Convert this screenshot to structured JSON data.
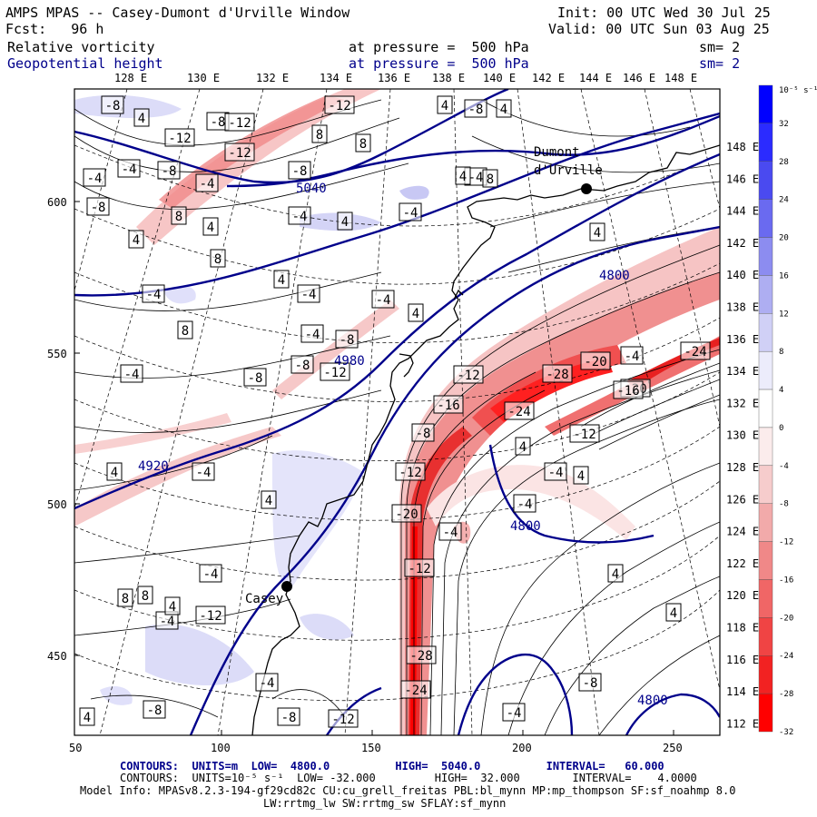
{
  "header": {
    "title": "AMPS MPAS -- Casey-Dumont d'Urville Window",
    "init": "Init: 00 UTC Wed 30 Jul 25",
    "fcst": "Fcst:   96 h",
    "valid": "Valid: 00 UTC Sun 03 Aug 25",
    "field1": "Relative vorticity",
    "field1_pressure": "at pressure =  500 hPa",
    "field1_sm": "sm= 2",
    "field2": "Geopotential height",
    "field2_pressure": "at pressure =  500 hPa",
    "field2_sm": "sm= 2"
  },
  "map": {
    "top_lon_labels": [
      "128 E",
      "130 E",
      "132 E",
      "134 E",
      "136 E",
      "138 E",
      "140 E",
      "142 E",
      "144 E",
      "146 E",
      "148 E"
    ],
    "right_lat_labels": [
      "148 E",
      "146 E",
      "144 E",
      "142 E",
      "140 E",
      "138 E",
      "136 E",
      "134 E",
      "132 E",
      "130 E",
      "128 E",
      "126 E",
      "124 E",
      "122 E",
      "120 E",
      "118 E",
      "116 E",
      "114 E",
      "112 E"
    ],
    "left_y_labels": [
      "600",
      "550",
      "500",
      "450"
    ],
    "bottom_x_labels": [
      "50",
      "100",
      "150",
      "200",
      "250"
    ],
    "stations": [
      {
        "name": "Dumont d'Urville"
      },
      {
        "name": "Casey"
      }
    ],
    "geopotential_labels": [
      "5040",
      "4980",
      "4920",
      "4800",
      "4800",
      "4800"
    ],
    "vorticity_labels": [
      "-8",
      "4",
      "-8",
      "-12",
      "-12",
      "4",
      "-8",
      "4",
      "-12",
      "-12",
      "8",
      "8",
      "-4",
      "-4",
      "-8",
      "-4",
      "-8",
      "4",
      "8",
      "4",
      "-8",
      "-4",
      "4",
      "-4",
      "8",
      "-4",
      "8",
      "4",
      "-4",
      "-4",
      "-8",
      "-4",
      "4",
      "-4",
      "4",
      "8",
      "-4",
      "-8",
      "-8",
      "-12",
      "-16",
      "-28",
      "-20",
      "-24",
      "-20",
      "-24",
      "-16",
      "-4",
      "4",
      "-12",
      "-8",
      "-12",
      "-4",
      "4",
      "4",
      "8",
      "-4",
      "-12",
      "-20",
      "-12",
      "-28",
      "-24",
      "-4",
      "-8",
      "-12",
      "-8",
      "4",
      "-4",
      "4",
      "8",
      "-4",
      "-8",
      "-4",
      "4",
      "-4",
      "-4",
      "4",
      "4",
      "-12",
      "4"
    ]
  },
  "colorbar": {
    "unit_label": "10⁻⁵ s⁻¹",
    "ticks": [
      "32",
      "28",
      "24",
      "20",
      "16",
      "12",
      "8",
      "4",
      "0",
      "-4",
      "-8",
      "-12",
      "-16",
      "-20",
      "-24",
      "-28",
      "-32"
    ],
    "colors": [
      "#0000ff",
      "#2b2bff",
      "#4a4af0",
      "#6a6af0",
      "#8c8cf0",
      "#aeaef2",
      "#d0d0f6",
      "#ececfb",
      "#ffffff",
      "#fbecec",
      "#f6cccc",
      "#f2aaaa",
      "#f08888",
      "#f06666",
      "#f04444",
      "#f22222",
      "#ff0000"
    ]
  },
  "footer": {
    "contours1": "CONTOURS:  UNITS=m  LOW=  4800.0          HIGH=  5040.0          INTERVAL=   60.000",
    "contours2": "CONTOURS:  UNITS=10⁻⁵ s⁻¹  LOW= -32.000         HIGH=  32.000        INTERVAL=    4.0000",
    "model1": "Model Info: MPASv8.2.3-194-gf29cd82c CU:cu_grell_freitas PBL:bl_mynn MP:mp_thompson SF:sf_noahmp 8.0",
    "model2": "LW:rrtmg_lw SW:rrtmg_sw SFLAY:sf_mynn"
  }
}
